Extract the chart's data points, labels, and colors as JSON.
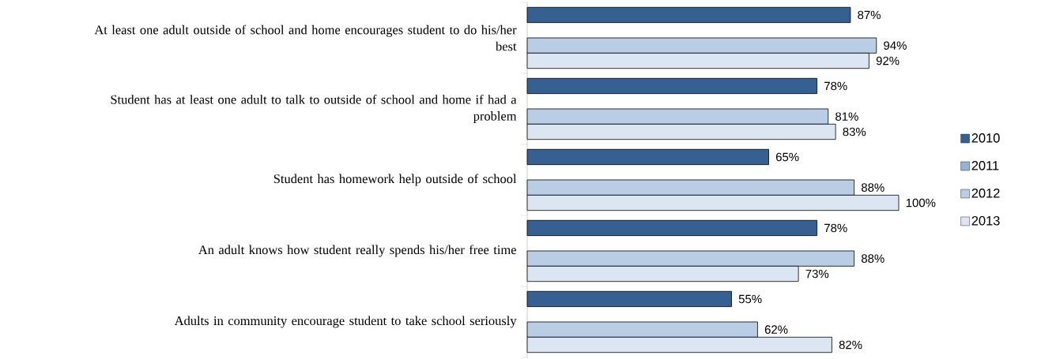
{
  "chart_data": {
    "type": "bar",
    "orientation": "horizontal",
    "categories": [
      "At least one adult outside of school and home encourages student to do his/her best",
      "Student has at least one adult to talk to outside of school and home if had a problem",
      "Student has homework help outside of school",
      "An adult knows how student really spends his/her free time",
      "Adults in community encourage student to take school seriously"
    ],
    "series": [
      {
        "name": "2010",
        "color": "#376092",
        "values": [
          87,
          78,
          65,
          78,
          55
        ],
        "value_labels": [
          "87%",
          "78%",
          "65%",
          "78%",
          "55%"
        ]
      },
      {
        "name": "2011",
        "color": "#95b3d7",
        "values": [
          null,
          null,
          null,
          null,
          null
        ]
      },
      {
        "name": "2012",
        "color": "#b9cde5",
        "values": [
          94,
          81,
          88,
          88,
          62
        ],
        "value_labels": [
          "94%",
          "81%",
          "88%",
          "88%",
          "62%"
        ]
      },
      {
        "name": "2013",
        "color": "#dce6f2",
        "values": [
          92,
          83,
          100,
          73,
          82
        ],
        "value_labels": [
          "92%",
          "83%",
          "100%",
          "73%",
          "82%"
        ]
      }
    ],
    "xlim": [
      0,
      100
    ],
    "legend": "right"
  }
}
